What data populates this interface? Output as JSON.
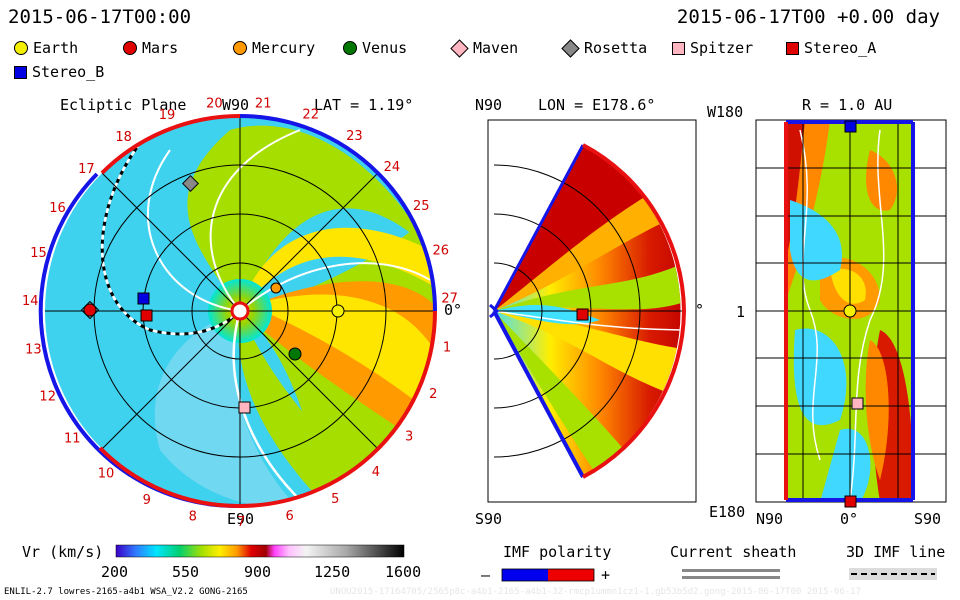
{
  "header": {
    "datetime_left": "2015-06-17T00:00",
    "datetime_right": "2015-06-17T00 +0.00 day"
  },
  "legend": [
    {
      "name": "Earth",
      "shape": "circle",
      "color": "#f5f000"
    },
    {
      "name": "Mars",
      "shape": "circle",
      "color": "#e00000"
    },
    {
      "name": "Mercury",
      "shape": "circle",
      "color": "#ff9900"
    },
    {
      "name": "Venus",
      "shape": "circle",
      "color": "#007700"
    },
    {
      "name": "Maven",
      "shape": "diamond",
      "color": "#ffb6c1"
    },
    {
      "name": "Rosetta",
      "shape": "diamond",
      "color": "#888888"
    },
    {
      "name": "Spitzer",
      "shape": "square",
      "color": "#ffb6c1"
    },
    {
      "name": "Stereo_A",
      "shape": "square",
      "color": "#e00000"
    },
    {
      "name": "Stereo_B",
      "shape": "square",
      "color": "#0000e0"
    }
  ],
  "ecliptic": {
    "title": "Ecliptic Plane",
    "lat": "LAT = 1.19°",
    "label_top": "W90",
    "label_bottom": "E90",
    "label_right": "0°",
    "rotation_ticks": [
      "20",
      "21",
      "22",
      "23",
      "24",
      "25",
      "26",
      "27",
      "1",
      "2",
      "3",
      "4",
      "5",
      "6",
      "7",
      "8",
      "9",
      "10",
      "11",
      "12",
      "13",
      "14",
      "15",
      "16",
      "17",
      "18",
      "19"
    ]
  },
  "meridional": {
    "title_left": "N90",
    "title": "LON = E178.6°",
    "label_bottom": "S90",
    "label_right": "0°"
  },
  "radial": {
    "title_left": "W180",
    "title": "R = 1.0 AU",
    "label_mid": "1",
    "label_bottom_left": "E180",
    "label_x_left": "N90",
    "label_x_mid": "0°",
    "label_x_right": "S90"
  },
  "colorbar": {
    "title": "Vr (km/s)",
    "ticks": [
      "200",
      "550",
      "900",
      "1250",
      "1600"
    ]
  },
  "imf": {
    "title": "IMF polarity",
    "minus": "–",
    "plus": "+",
    "colors": {
      "negative": "#0000ee",
      "positive": "#ee0000"
    }
  },
  "current_sheath": {
    "title": "Current sheath"
  },
  "imf_line": {
    "title": "3D IMF line"
  },
  "footer": {
    "left": "ENLIL-2.7 lowres-2165-a4b1 WSA_V2.2 GONG-2165",
    "right": "UNOU2015-17164705/2565p8c-a4b1-2165-a4b1-32-rmcp1ummn1cz1-1.gb53b5d2.gong-2015-06-17T00 2015-06-17"
  }
}
